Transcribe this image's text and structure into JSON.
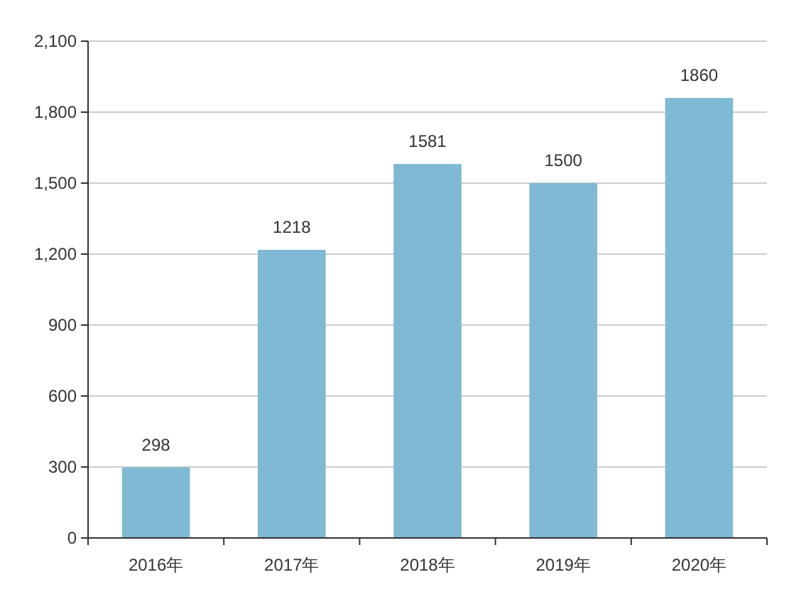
{
  "chart_data": {
    "type": "bar",
    "categories": [
      "2016年",
      "2017年",
      "2018年",
      "2019年",
      "2020年"
    ],
    "values": [
      298,
      1218,
      1581,
      1500,
      1860
    ],
    "color": "#7fb9d4",
    "ylim": [
      0,
      2100
    ],
    "yticks": [
      0,
      300,
      600,
      900,
      {
        "value": 1200,
        "label": "1,200"
      },
      {
        "value": 1500,
        "label": "1,500"
      },
      {
        "value": 1800,
        "label": "1,800"
      },
      {
        "value": 2100,
        "label": "2,100"
      }
    ],
    "grid": "y",
    "data_labels": true
  }
}
